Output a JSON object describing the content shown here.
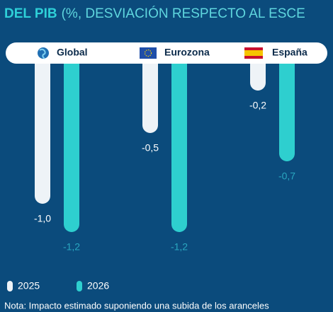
{
  "chart_data": {
    "type": "bar",
    "title": [
      "DEL PIB",
      "(%, DESVIACIÓN RESPECTO AL ESCE"
    ],
    "categories": [
      "Global",
      "Eurozona",
      "España"
    ],
    "series": [
      {
        "name": "2025",
        "color": "#eef3f7",
        "values": [
          -1.0,
          -0.5,
          -0.2
        ],
        "value_labels": [
          "-1,0",
          "-0,5",
          "-0,2"
        ]
      },
      {
        "name": "2026",
        "color": "#2ecfcf",
        "values": [
          -1.2,
          -1.2,
          -0.7
        ],
        "value_labels": [
          "-1,2",
          "-1,2",
          "-0,7"
        ]
      }
    ],
    "ylim": [
      -1.3,
      0
    ],
    "note": "Nota: Impacto estimado suponiendo una subida de los aranceles"
  }
}
